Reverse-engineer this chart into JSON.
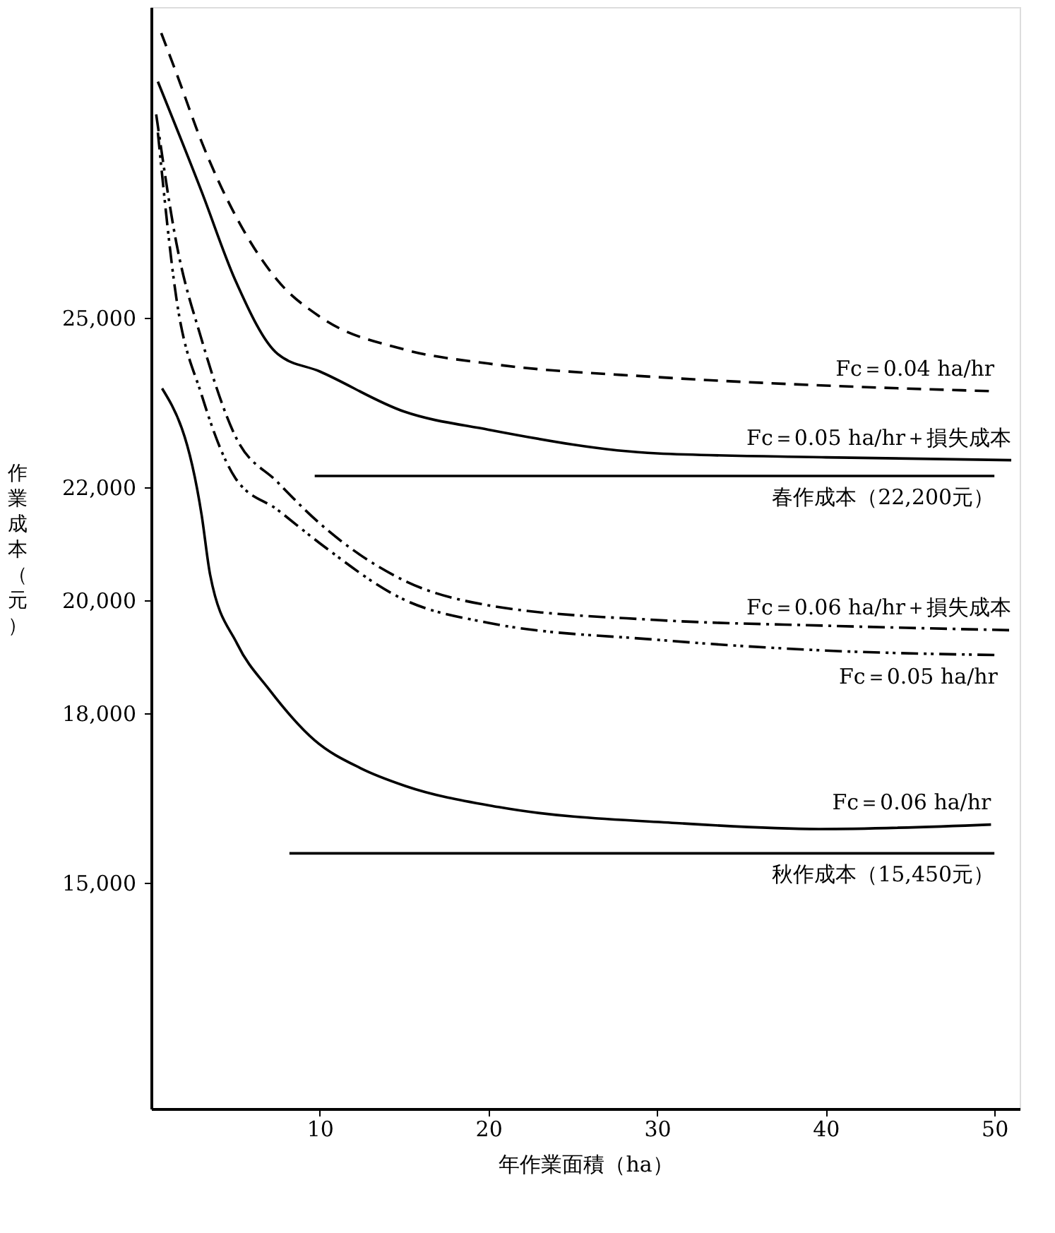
{
  "chart_data": {
    "type": "line",
    "xlabel": "年作業面積（ha）",
    "ylabel": "作業成本（元）",
    "xlim": [
      0,
      51.5
    ],
    "xticks": [
      10,
      20,
      30,
      40,
      50
    ],
    "ylim": [
      11000,
      30500
    ],
    "yticks": [
      {
        "value": 15000,
        "label": "15,000"
      },
      {
        "value": 18000,
        "label": "18,000"
      },
      {
        "value": 20000,
        "label": "20,000"
      },
      {
        "value": 22000,
        "label": "22,000"
      },
      {
        "value": 25000,
        "label": "25,000"
      }
    ],
    "grid": false,
    "marker": "none",
    "series": [
      {
        "name": "Fc＝0.04 ha/hr",
        "color": "#000000",
        "line_style": "dashed",
        "x": [
          0.6,
          1.5,
          3,
          5,
          7.5,
          10,
          15,
          20,
          30,
          40,
          50
        ],
        "values": [
          30040,
          29330,
          28110,
          26810,
          25660,
          25020,
          24440,
          24190,
          23950,
          23800,
          23700
        ]
      },
      {
        "name": "Fc＝0.05 ha/hr＋損失成本",
        "color": "#000000",
        "line_style": "solid",
        "x": [
          0.4,
          3,
          5,
          7.5,
          10,
          15,
          20,
          30,
          40,
          51
        ],
        "values": [
          29180,
          27230,
          25660,
          24360,
          24050,
          23340,
          23020,
          22600,
          22530,
          22480
        ]
      },
      {
        "name": "春作成本（22,200元）",
        "color": "#000000",
        "line_style": "solid",
        "x": [
          9.7,
          50
        ],
        "values": [
          22200,
          22200
        ]
      },
      {
        "name": "Fc＝0.06 ha/hr＋損失成本",
        "color": "#000000",
        "line_style": "dashdot",
        "x": [
          0.3,
          1.5,
          3,
          5,
          7.5,
          10,
          15,
          20,
          30,
          40,
          51
        ],
        "values": [
          28600,
          26320,
          24610,
          22900,
          22090,
          21360,
          20350,
          19910,
          19650,
          19550,
          19470
        ]
      },
      {
        "name": "Fc＝0.05 ha/hr",
        "color": "#000000",
        "line_style": "dashdotdot",
        "x": [
          0.4,
          1.5,
          3,
          5,
          7.5,
          10,
          15,
          20,
          30,
          40,
          50.2
        ],
        "values": [
          28280,
          25340,
          23630,
          22160,
          21600,
          21010,
          20010,
          19600,
          19300,
          19110,
          19030
        ]
      },
      {
        "name": "Fc＝0.06 ha/hr",
        "color": "#000000",
        "line_style": "solid",
        "x": [
          0.65,
          3,
          3.5,
          5.1,
          7,
          9.7,
          12.4,
          15.1,
          20.6,
          31.5,
          39.6,
          49.8
        ],
        "values": [
          23750,
          21500,
          20450,
          19230,
          18420,
          17520,
          17030,
          16710,
          16340,
          16050,
          15950,
          16030
        ]
      },
      {
        "name": "秋作成本（15,450元）",
        "color": "#000000",
        "line_style": "solid",
        "x": [
          8.2,
          50
        ],
        "values": [
          15520,
          15520
        ]
      }
    ]
  }
}
